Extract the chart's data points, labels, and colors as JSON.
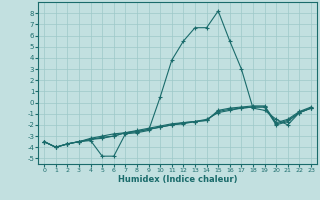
{
  "xlabel": "Humidex (Indice chaleur)",
  "xlim": [
    -0.5,
    23.5
  ],
  "ylim": [
    -5.5,
    9.0
  ],
  "yticks": [
    -5,
    -4,
    -3,
    -2,
    -1,
    0,
    1,
    2,
    3,
    4,
    5,
    6,
    7,
    8
  ],
  "xticks": [
    0,
    1,
    2,
    3,
    4,
    5,
    6,
    7,
    8,
    9,
    10,
    11,
    12,
    13,
    14,
    15,
    16,
    17,
    18,
    19,
    20,
    21,
    22,
    23
  ],
  "bg_color": "#c2e0e0",
  "line_color": "#1a6b6b",
  "grid_color": "#9dc8c8",
  "lines": [
    {
      "x": [
        0,
        1,
        2,
        3,
        4,
        5,
        6,
        7,
        8,
        9,
        10,
        11,
        12,
        13,
        14,
        15,
        16,
        17,
        18,
        19,
        20,
        21,
        22,
        23
      ],
      "y": [
        -3.5,
        -4.0,
        -3.7,
        -3.5,
        -3.4,
        -4.8,
        -4.8,
        -2.8,
        -2.7,
        -2.5,
        0.5,
        3.8,
        5.5,
        6.7,
        6.7,
        8.2,
        5.5,
        3.0,
        -0.5,
        -0.7,
        -1.5,
        -2.0,
        -0.9,
        -0.5
      ]
    },
    {
      "x": [
        0,
        1,
        2,
        3,
        4,
        5,
        6,
        7,
        8,
        9,
        10,
        11,
        12,
        13,
        14,
        15,
        16,
        17,
        18,
        19,
        20,
        21,
        22,
        23
      ],
      "y": [
        -3.5,
        -4.0,
        -3.7,
        -3.5,
        -3.2,
        -3.0,
        -2.8,
        -2.7,
        -2.6,
        -2.4,
        -2.2,
        -2.0,
        -1.9,
        -1.7,
        -1.6,
        -0.7,
        -0.5,
        -0.4,
        -0.3,
        -0.3,
        -1.8,
        -1.5,
        -0.8,
        -0.4
      ]
    },
    {
      "x": [
        0,
        1,
        2,
        3,
        4,
        5,
        6,
        7,
        8,
        9,
        10,
        11,
        12,
        13,
        14,
        15,
        16,
        17,
        18,
        19,
        20,
        21,
        22,
        23
      ],
      "y": [
        -3.5,
        -4.0,
        -3.7,
        -3.5,
        -3.3,
        -3.2,
        -3.0,
        -2.7,
        -2.5,
        -2.3,
        -2.1,
        -1.9,
        -1.8,
        -1.7,
        -1.6,
        -0.8,
        -0.6,
        -0.5,
        -0.4,
        -0.4,
        -1.9,
        -1.6,
        -0.9,
        -0.5
      ]
    },
    {
      "x": [
        0,
        1,
        2,
        3,
        4,
        5,
        6,
        7,
        8,
        9,
        10,
        11,
        12,
        13,
        14,
        15,
        16,
        17,
        18,
        19,
        20,
        21,
        22,
        23
      ],
      "y": [
        -3.5,
        -4.0,
        -3.7,
        -3.5,
        -3.3,
        -3.1,
        -3.0,
        -2.7,
        -2.6,
        -2.4,
        -2.2,
        -2.0,
        -1.8,
        -1.7,
        -1.5,
        -0.9,
        -0.7,
        -0.5,
        -0.4,
        -0.4,
        -2.0,
        -1.7,
        -0.9,
        -0.5
      ]
    }
  ]
}
